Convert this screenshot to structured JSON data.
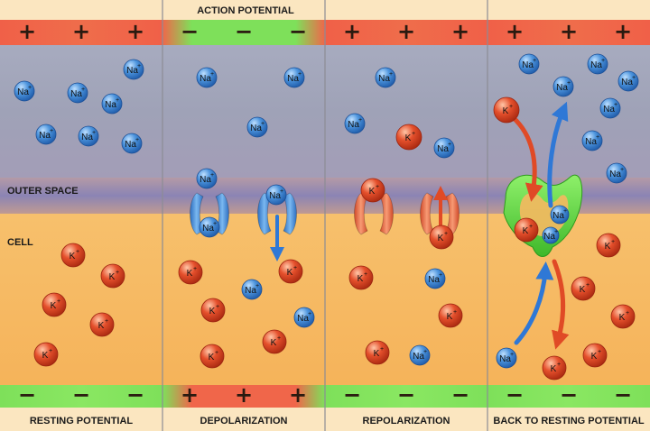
{
  "title": "ACTION POTENTIAL",
  "region_labels": {
    "outer": "OUTER SPACE",
    "cell": "CELL"
  },
  "ion_labels": {
    "sodium": "Na",
    "potassium": "K",
    "charge": "+"
  },
  "charge_symbols": {
    "positive": "+",
    "negative": "−"
  },
  "panels": [
    {
      "caption": "RESTING POTENTIAL",
      "top_charge": "positive",
      "bottom_charge": "negative"
    },
    {
      "caption": "DEPOLARIZATION",
      "top_charge": "negative",
      "bottom_charge": "positive"
    },
    {
      "caption": "REPOLARIZATION",
      "top_charge": "positive",
      "bottom_charge": "negative"
    },
    {
      "caption": "BACK TO RESTING POTENTIAL",
      "top_charge": "positive",
      "bottom_charge": "negative"
    }
  ],
  "colors": {
    "outer_space": "#9ea3b8",
    "cell_interior": "#f6b860",
    "membrane": "#8d84b0",
    "positive_band": "#f0664a",
    "negative_band": "#7ee05a",
    "sodium_ion": "#3f86d4",
    "potassium_ion": "#e24a2a",
    "sodium_channel": "#4a90d6",
    "potassium_channel": "#ea6a44",
    "pump": "#5fd83c"
  }
}
